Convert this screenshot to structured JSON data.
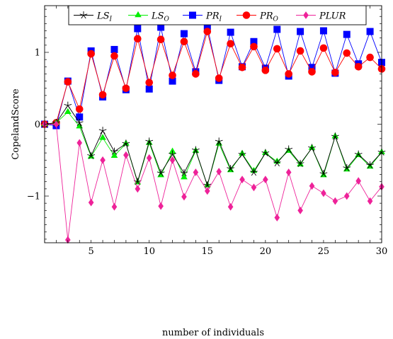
{
  "chart_data": {
    "type": "line",
    "xlabel": "number of individuals",
    "ylabel": "CopelandScore",
    "xlim": [
      1,
      30
    ],
    "ylim": [
      -1.65,
      1.65
    ],
    "xticks": [
      {
        "value": 5,
        "label": "5"
      },
      {
        "value": 10,
        "label": "10"
      },
      {
        "value": 15,
        "label": "15"
      },
      {
        "value": 20,
        "label": "20"
      },
      {
        "value": 25,
        "label": "25"
      },
      {
        "value": 30,
        "label": "30"
      }
    ],
    "yticks": [
      {
        "value": -1,
        "label": "−1"
      },
      {
        "value": 0,
        "label": "0"
      },
      {
        "value": 1,
        "label": "1"
      }
    ],
    "grid": false,
    "legend_position": "top",
    "x": [
      1,
      2,
      3,
      4,
      5,
      6,
      7,
      8,
      9,
      10,
      11,
      12,
      13,
      14,
      15,
      16,
      17,
      18,
      19,
      20,
      21,
      22,
      23,
      24,
      25,
      26,
      27,
      28,
      29,
      30
    ],
    "series": [
      {
        "name": "LS_I",
        "name_main": "LS",
        "name_sub": "I",
        "color": "#000000",
        "marker": "star",
        "values": [
          0,
          0.02,
          0.26,
          0.02,
          -0.44,
          -0.09,
          -0.38,
          -0.27,
          -0.8,
          -0.24,
          -0.68,
          -0.42,
          -0.68,
          -0.36,
          -0.85,
          -0.24,
          -0.62,
          -0.42,
          -0.67,
          -0.4,
          -0.54,
          -0.35,
          -0.55,
          -0.33,
          -0.69,
          -0.17,
          -0.61,
          -0.42,
          -0.57,
          -0.39
        ]
      },
      {
        "name": "LS_O",
        "name_main": "LS",
        "name_sub": "O",
        "color": "#00ee00",
        "marker": "triangle",
        "values": [
          0,
          0.02,
          0.17,
          -0.03,
          -0.45,
          -0.19,
          -0.44,
          -0.27,
          -0.81,
          -0.26,
          -0.71,
          -0.38,
          -0.74,
          -0.37,
          -0.85,
          -0.27,
          -0.64,
          -0.41,
          -0.65,
          -0.4,
          -0.52,
          -0.37,
          -0.56,
          -0.33,
          -0.71,
          -0.17,
          -0.63,
          -0.43,
          -0.59,
          -0.39
        ]
      },
      {
        "name": "PR_I",
        "name_main": "PR",
        "name_sub": "I",
        "color": "#0000ff",
        "marker": "square",
        "values": [
          0,
          -0.02,
          0.6,
          0.1,
          1.02,
          0.38,
          1.04,
          0.48,
          1.33,
          0.49,
          1.35,
          0.6,
          1.26,
          0.73,
          1.36,
          0.61,
          1.28,
          0.8,
          1.15,
          0.78,
          1.32,
          0.67,
          1.29,
          0.79,
          1.3,
          0.71,
          1.25,
          0.84,
          1.29,
          0.86
        ]
      },
      {
        "name": "PR_O",
        "name_main": "PR",
        "name_sub": "O",
        "color": "#ff0000",
        "marker": "circle",
        "values": [
          0,
          0.02,
          0.59,
          0.21,
          0.98,
          0.41,
          0.95,
          0.5,
          1.19,
          0.58,
          1.18,
          0.68,
          1.15,
          0.7,
          1.29,
          0.64,
          1.12,
          0.79,
          1.08,
          0.75,
          1.05,
          0.7,
          1.02,
          0.73,
          1.06,
          0.72,
          0.99,
          0.8,
          0.93,
          0.77
        ]
      },
      {
        "name": "PLUR",
        "name_main": "PLUR",
        "name_sub": "",
        "color": "#ee2299",
        "marker": "diamond",
        "values": [
          0,
          0,
          -1.61,
          -0.26,
          -1.09,
          -0.5,
          -1.15,
          -0.43,
          -0.9,
          -0.47,
          -1.14,
          -0.5,
          -1.01,
          -0.67,
          -0.93,
          -0.66,
          -1.15,
          -0.77,
          -0.88,
          -0.77,
          -1.3,
          -0.67,
          -1.2,
          -0.86,
          -0.96,
          -1.07,
          -1.0,
          -0.79,
          -1.07,
          -0.87
        ]
      }
    ]
  }
}
